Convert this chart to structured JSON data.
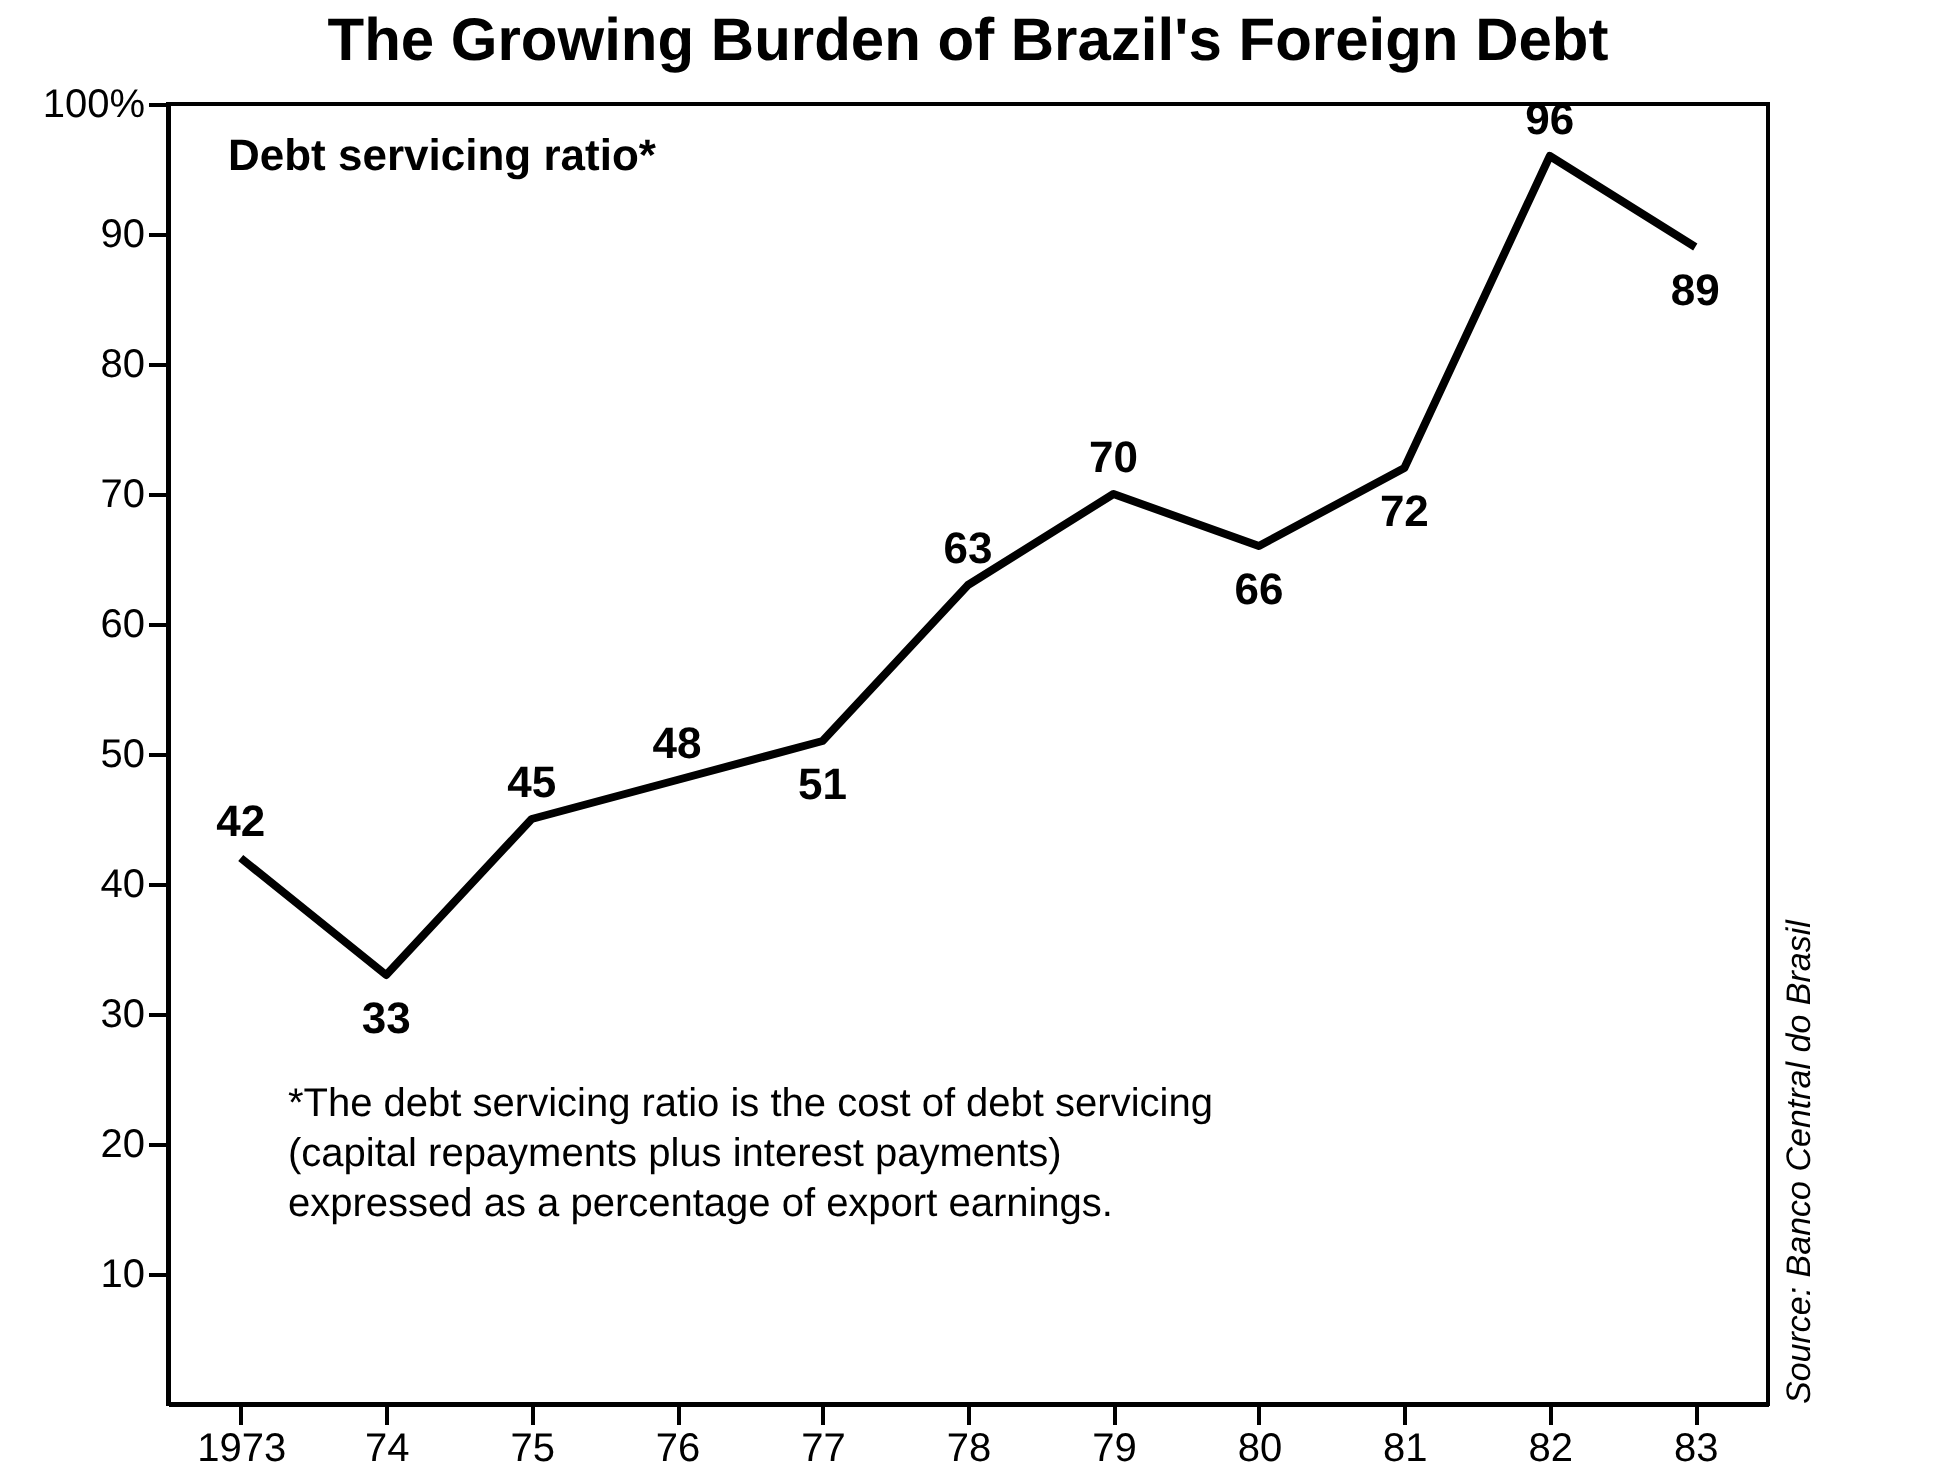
{
  "chart_data": {
    "type": "line",
    "title": "The Growing Burden of Brazil's Foreign Debt",
    "subtitle": "Debt servicing ratio*",
    "categories": [
      "1973",
      "74",
      "75",
      "76",
      "77",
      "78",
      "79",
      "80",
      "81",
      "82",
      "83"
    ],
    "values": [
      42,
      33,
      45,
      48,
      51,
      63,
      70,
      66,
      72,
      96,
      89
    ],
    "color": "#000000",
    "data_labels": true,
    "ylim": [
      0,
      100
    ],
    "yticks": [
      10,
      20,
      30,
      40,
      50,
      60,
      70,
      80,
      90,
      {
        "value": 100,
        "label": "100%"
      }
    ],
    "grid": false,
    "marker": "none",
    "line_style": "solid",
    "annotations": [
      "*The debt servicing ratio is the cost of debt servicing\n(capital repayments plus interest payments)\nexpressed as a percentage of export earnings.",
      "Source: Banco Central do Brasil"
    ]
  }
}
